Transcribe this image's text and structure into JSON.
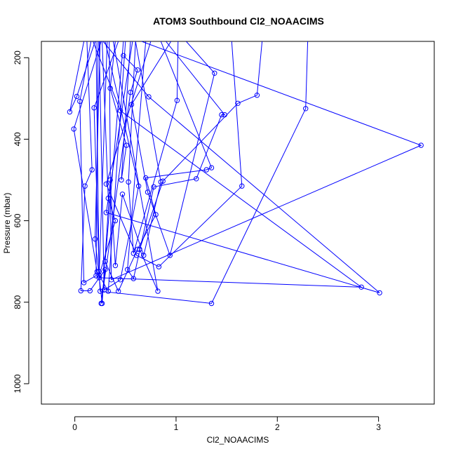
{
  "chart_data": {
    "type": "line",
    "title": "ATOM3 Southbound Cl2_NOAACIMS",
    "xlabel": "Cl2_NOAACIMS",
    "ylabel": "Pressure (mbar)",
    "xlim": [
      -0.33,
      3.55
    ],
    "ylim": [
      1050,
      160
    ],
    "y_reversed": true,
    "x_ticks": [
      0,
      1,
      2,
      3
    ],
    "y_ticks": [
      200,
      400,
      600,
      800,
      1000
    ],
    "color": "#0000ff",
    "series": [
      {
        "values": [
          [
            0.12,
            160
          ],
          [
            0.17,
            475
          ],
          [
            0.1,
            515
          ],
          [
            0.06,
            772
          ],
          [
            0.15,
            772
          ],
          [
            0.3,
            720
          ],
          [
            0.26,
            803
          ],
          [
            0.55,
            285
          ],
          [
            0.62,
            230
          ],
          [
            0.48,
            195
          ]
        ]
      },
      {
        "values": [
          [
            0.25,
            160
          ],
          [
            0.2,
            645
          ],
          [
            0.27,
            803
          ],
          [
            0.35,
            500
          ],
          [
            0.4,
            710
          ],
          [
            0.47,
            535
          ],
          [
            0.68,
            685
          ],
          [
            0.85,
            505
          ],
          [
            0.6,
            160
          ]
        ]
      },
      {
        "values": [
          [
            0.48,
            160
          ],
          [
            0.3,
            700
          ],
          [
            0.43,
            773
          ],
          [
            0.62,
            670
          ],
          [
            0.8,
            585
          ],
          [
            0.7,
            495
          ],
          [
            1.3,
            475
          ],
          [
            1.35,
            470
          ],
          [
            0.85,
            160
          ]
        ]
      },
      {
        "values": [
          [
            0.7,
            160
          ],
          [
            0.52,
            720
          ],
          [
            0.58,
            742
          ],
          [
            0.78,
            517
          ],
          [
            1.2,
            497
          ],
          [
            1.45,
            340
          ],
          [
            1.48,
            340
          ],
          [
            0.9,
            160
          ]
        ]
      },
      {
        "values": [
          [
            0.38,
            160
          ],
          [
            0.82,
            773
          ],
          [
            0.64,
            670
          ],
          [
            0.87,
            503
          ],
          [
            1.61,
            312
          ],
          [
            1.8,
            292
          ],
          [
            1.85,
            160
          ]
        ]
      },
      {
        "values": [
          [
            0.21,
            160
          ],
          [
            0.24,
            740
          ],
          [
            2.83,
            763
          ],
          [
            0.45,
            330
          ],
          [
            0.18,
            160
          ]
        ]
      },
      {
        "values": [
          [
            0.57,
            160
          ],
          [
            0.31,
            580
          ],
          [
            3.01,
            777
          ],
          [
            0.73,
            296
          ],
          [
            0.28,
            160
          ]
        ]
      },
      {
        "values": [
          [
            0.34,
            160
          ],
          [
            0.36,
            745
          ],
          [
            3.42,
            415
          ],
          [
            0.66,
            160
          ]
        ]
      },
      {
        "values": [
          [
            0.09,
            160
          ],
          [
            -0.05,
            333
          ],
          [
            0.02,
            295
          ],
          [
            0.2,
            160
          ]
        ]
      },
      {
        "values": [
          [
            0.26,
            160
          ],
          [
            -0.01,
            375
          ],
          [
            0.22,
            725
          ],
          [
            0.33,
            773
          ],
          [
            0.5,
            160
          ]
        ]
      },
      {
        "values": [
          [
            0.16,
            160
          ],
          [
            0.05,
            307
          ],
          [
            0.09,
            752
          ],
          [
            0.21,
            735
          ],
          [
            0.23,
            160
          ]
        ]
      },
      {
        "values": [
          [
            0.43,
            160
          ],
          [
            0.19,
            323
          ],
          [
            0.24,
            725
          ],
          [
            0.25,
            773
          ],
          [
            1.35,
            803
          ],
          [
            2.28,
            325
          ],
          [
            2.3,
            160
          ]
        ]
      },
      {
        "values": [
          [
            0.75,
            160
          ],
          [
            0.31,
            510
          ],
          [
            0.61,
            685
          ],
          [
            0.83,
            713
          ],
          [
            1.65,
            515
          ],
          [
            1.55,
            160
          ]
        ]
      },
      {
        "values": [
          [
            0.95,
            160
          ],
          [
            0.56,
            315
          ],
          [
            0.72,
            530
          ],
          [
            0.94,
            685
          ],
          [
            1.38,
            238
          ],
          [
            1.1,
            160
          ]
        ]
      },
      {
        "values": [
          [
            0.6,
            160
          ],
          [
            0.53,
            505
          ],
          [
            0.58,
            680
          ],
          [
            1.01,
            305
          ],
          [
            1.02,
            160
          ]
        ]
      },
      {
        "values": [
          [
            0.3,
            160
          ],
          [
            0.63,
            515
          ],
          [
            0.45,
            745
          ],
          [
            0.29,
            770
          ],
          [
            0.24,
            160
          ]
        ]
      },
      {
        "values": [
          [
            0.27,
            160
          ],
          [
            0.33,
            545
          ],
          [
            0.4,
            600
          ],
          [
            0.24,
            735
          ],
          [
            0.32,
            160
          ]
        ]
      },
      {
        "values": [
          [
            0.55,
            160
          ],
          [
            0.46,
            500
          ],
          [
            0.51,
            415
          ],
          [
            0.35,
            275
          ],
          [
            0.4,
            160
          ]
        ]
      }
    ]
  }
}
